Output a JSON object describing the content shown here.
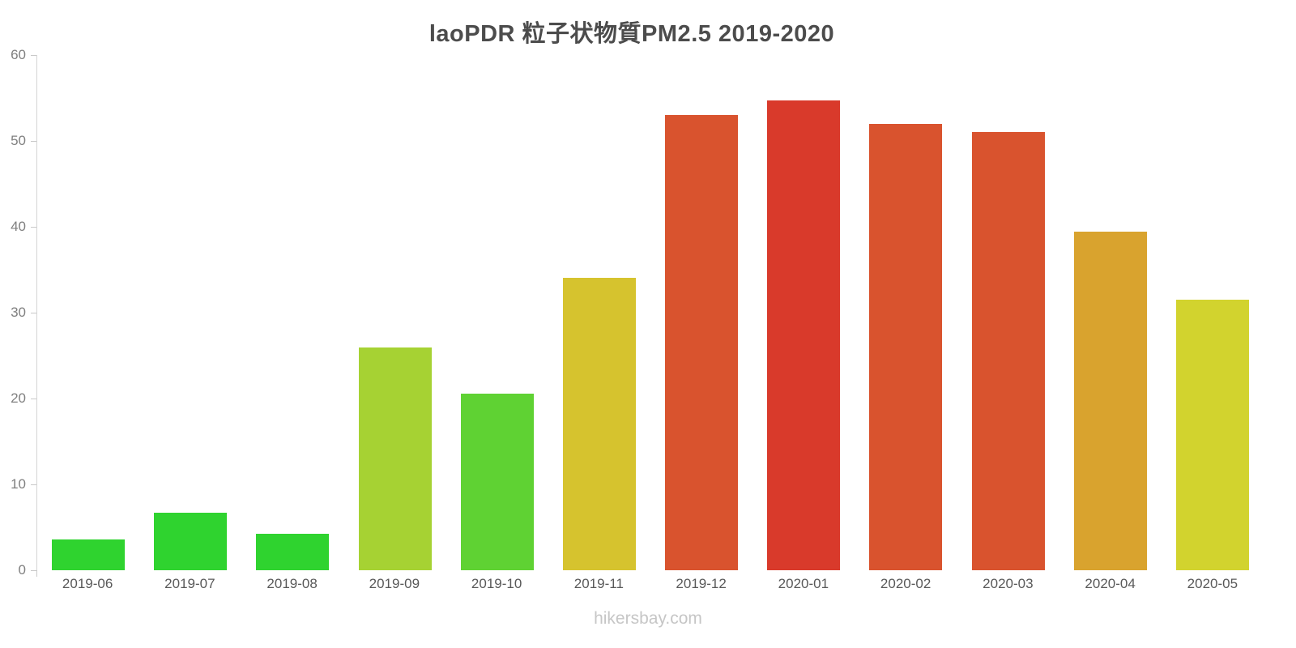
{
  "title": "laoPDR 粒子状物質PM2.5 2019-2020",
  "footer": "hikersbay.com",
  "chart_data": {
    "type": "bar",
    "title": "laoPDR 粒子状物質PM2.5 2019-2020",
    "categories": [
      "2019-06",
      "2019-07",
      "2019-08",
      "2019-09",
      "2019-10",
      "2019-11",
      "2019-12",
      "2020-01",
      "2020-02",
      "2020-03",
      "2020-04",
      "2020-05"
    ],
    "values": [
      3.6,
      6.7,
      4.2,
      25.9,
      20.6,
      34.1,
      53.0,
      54.7,
      52.0,
      51.0,
      39.4,
      31.5
    ],
    "bar_colors": [
      "#2fd32f",
      "#2fd32f",
      "#2fd32f",
      "#a6d233",
      "#5fd233",
      "#d6c32e",
      "#d9532e",
      "#d93a2b",
      "#d9532e",
      "#d9532e",
      "#d9a32e",
      "#d2d32e"
    ],
    "xlabel": "",
    "ylabel": "",
    "ylim": [
      0,
      60
    ],
    "yticks": [
      0,
      10,
      20,
      30,
      40,
      50,
      60
    ],
    "grid": false,
    "legend": false,
    "axis_color": "#d4d4d4",
    "tick_label_color": "#7f7f7f",
    "category_label_color": "#595959"
  }
}
